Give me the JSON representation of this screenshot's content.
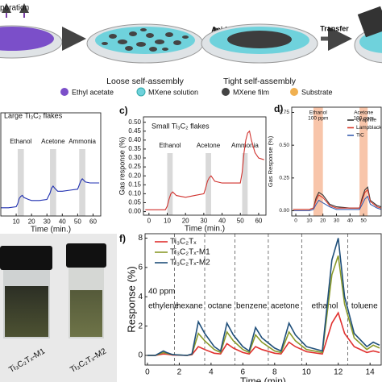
{
  "panel_a": {
    "evaporation": "poration",
    "step_loose": "Loose self-assembly",
    "arrow_acid": "Acid",
    "step_tight": "Tight self-assembly",
    "arrow_transfer": "Transfer",
    "legend": [
      "Ethyl acetate",
      "MXene solution",
      "MXene film",
      "Substrate"
    ]
  },
  "panel_e": {
    "labels": [
      "Ti₃C₂Tₓ-M1",
      "Ti₃C₂Tₓ-M2"
    ]
  },
  "chart_data": [
    {
      "type": "line",
      "title": "Large Ti₃C₂ flakes",
      "xlabel": "Time (min.)",
      "xlim": [
        0,
        65
      ],
      "ylim": [
        0,
        1
      ],
      "xticks": [
        10,
        20,
        30,
        40,
        50,
        60
      ],
      "x": [
        0,
        5,
        10,
        11,
        12,
        13,
        14,
        15,
        18,
        20,
        25,
        30,
        32,
        33,
        34,
        35,
        37,
        40,
        45,
        50,
        51,
        52,
        53,
        55,
        58,
        60,
        64
      ],
      "series": [
        {
          "color": "#1f2fb0",
          "values": [
            0.08,
            0.08,
            0.09,
            0.12,
            0.17,
            0.19,
            0.2,
            0.18,
            0.16,
            0.15,
            0.15,
            0.16,
            0.22,
            0.27,
            0.29,
            0.27,
            0.24,
            0.24,
            0.25,
            0.26,
            0.3,
            0.34,
            0.36,
            0.33,
            0.32,
            0.32,
            0.32
          ]
        }
      ],
      "shaded": [
        [
          11,
          15
        ],
        [
          32,
          36
        ],
        [
          51,
          55
        ]
      ],
      "shade_color": "#d9d9d9",
      "gas_labels": [
        "Ethanol",
        "Acetone",
        "Ammonia"
      ]
    },
    {
      "type": "line",
      "panel_label": "c)",
      "title": "Small Ti₃C₂ flakes",
      "xlabel": "Time (min.)",
      "ylabel": "Gas response (%)",
      "xlim": [
        -3,
        64
      ],
      "ylim": [
        -0.02,
        0.53
      ],
      "xticks": [
        0,
        10,
        20,
        30,
        40,
        50,
        60
      ],
      "yticks": [
        {
          "value": 0,
          "label": "0.00"
        },
        {
          "value": 0.05,
          "label": "0.05"
        },
        {
          "value": 0.1,
          "label": "0.10"
        },
        {
          "value": 0.15,
          "label": "0.15"
        },
        {
          "value": 0.2,
          "label": "0.20"
        },
        {
          "value": 0.25,
          "label": "0.25"
        },
        {
          "value": 0.3,
          "label": "0.30"
        },
        {
          "value": 0.35,
          "label": "0.35"
        },
        {
          "value": 0.4,
          "label": "0.40"
        },
        {
          "value": 0.45,
          "label": "0.45"
        },
        {
          "value": 0.5,
          "label": "0.50"
        }
      ],
      "x": [
        -2,
        0,
        5,
        9,
        10,
        11,
        12,
        13,
        15,
        20,
        25,
        30,
        31,
        32,
        33,
        34,
        36,
        40,
        45,
        50,
        51,
        52,
        53,
        54,
        55,
        56,
        58,
        60,
        63
      ],
      "series": [
        {
          "color": "#d0312d",
          "values": [
            0.01,
            0.01,
            0.01,
            0.01,
            0.03,
            0.07,
            0.1,
            0.11,
            0.09,
            0.08,
            0.09,
            0.1,
            0.13,
            0.17,
            0.19,
            0.2,
            0.17,
            0.16,
            0.16,
            0.16,
            0.22,
            0.33,
            0.4,
            0.44,
            0.45,
            0.4,
            0.33,
            0.3,
            0.29
          ]
        }
      ],
      "shaded": [
        [
          10,
          13
        ],
        [
          31,
          34
        ],
        [
          51,
          54
        ]
      ],
      "shade_color": "#d9d9d9",
      "gas_labels": [
        "Ethanol",
        "Acetone",
        "Ammonia"
      ]
    },
    {
      "type": "line",
      "panel_label": "d)",
      "ylabel": "Gas Response (%)",
      "xlim": [
        -3,
        63
      ],
      "ylim": [
        -0.04,
        0.79
      ],
      "xticks": [
        0,
        10,
        20,
        30,
        40,
        50
      ],
      "yticks": [
        {
          "value": 0,
          "label": "0.00"
        },
        {
          "value": 0.25,
          "label": "0.25"
        },
        {
          "value": 0.5,
          "label": "0.50"
        },
        {
          "value": 0.75,
          "label": "0.75"
        }
      ],
      "x": [
        -2,
        5,
        10,
        13,
        15,
        17,
        20,
        25,
        30,
        40,
        45,
        47,
        49,
        51,
        53,
        55,
        60,
        63
      ],
      "series": [
        {
          "name": "Graphite",
          "color": "#333333",
          "values": [
            0.01,
            0.01,
            0.01,
            0.02,
            0.1,
            0.14,
            0.12,
            0.05,
            0.03,
            0.02,
            0.02,
            0.02,
            0.1,
            0.16,
            0.18,
            0.08,
            0.04,
            0.03
          ]
        },
        {
          "name": "Lampblack",
          "color": "#d93a2b",
          "values": [
            0.01,
            0.01,
            0.01,
            0.02,
            0.08,
            0.12,
            0.1,
            0.04,
            0.02,
            0.02,
            0.02,
            0.02,
            0.08,
            0.14,
            0.16,
            0.07,
            0.03,
            0.02
          ]
        },
        {
          "name": "TiC",
          "color": "#3a5fb0",
          "values": [
            0,
            0,
            0,
            0.01,
            0.05,
            0.08,
            0.06,
            0.03,
            0.01,
            0.01,
            0.01,
            0.01,
            0.05,
            0.09,
            0.11,
            0.05,
            0.02,
            0.01
          ]
        }
      ],
      "shaded": [
        [
          13,
          20
        ],
        [
          47,
          53
        ]
      ],
      "shade_color": "#f8c5aa",
      "gas_labels": [
        "Ethanol",
        "Acetone"
      ],
      "gas_sublabels": [
        "100 ppm",
        "100 ppm"
      ],
      "legend": "upper right"
    },
    {
      "type": "line",
      "panel_label": "f)",
      "xlabel": "Time (min)",
      "ylabel": "Response (%)",
      "xlim": [
        -0.15,
        14.7
      ],
      "ylim": [
        -0.66,
        8.3
      ],
      "xticks": [
        0,
        2,
        4,
        6,
        8,
        10,
        12,
        14
      ],
      "yticks": [
        0,
        2,
        4,
        6,
        8
      ],
      "x": [
        0,
        0.5,
        1.0,
        1.2,
        1.6,
        2.5,
        2.8,
        3.2,
        3.6,
        4.2,
        4.6,
        5.0,
        5.4,
        6.0,
        6.4,
        6.8,
        7.2,
        8.0,
        8.4,
        8.9,
        9.3,
        10.0,
        11.0,
        11.6,
        12.0,
        12.4,
        13.0,
        13.8,
        14.2,
        14.6
      ],
      "series": [
        {
          "name": "Ti₃C₂Tₓ",
          "color": "#e0312f",
          "values": [
            0,
            0,
            0.1,
            0.08,
            0.02,
            0,
            0.05,
            0.6,
            0.4,
            0.15,
            0.1,
            0.8,
            0.5,
            0.2,
            0.1,
            0.6,
            0.4,
            0.15,
            0.1,
            0.9,
            0.6,
            0.25,
            0.1,
            2.2,
            2.9,
            1.5,
            0.6,
            0.2,
            0.3,
            0.2
          ]
        },
        {
          "name": "Ti₃C₂Tₓ-M1",
          "color": "#8a9a2a",
          "values": [
            0,
            0,
            0.2,
            0.15,
            0.05,
            0,
            0.08,
            1.5,
            1.0,
            0.4,
            0.2,
            1.6,
            1.0,
            0.4,
            0.2,
            1.4,
            0.9,
            0.3,
            0.2,
            1.6,
            1.0,
            0.4,
            0.2,
            5.5,
            6.8,
            3.5,
            1.2,
            0.4,
            0.7,
            0.5
          ]
        },
        {
          "name": "Ti₃C₂Tₓ-M2",
          "color": "#1f4f7a",
          "values": [
            0,
            0,
            0.3,
            0.2,
            0.05,
            0,
            0.1,
            2.3,
            1.5,
            0.6,
            0.3,
            2.2,
            1.4,
            0.6,
            0.3,
            1.9,
            1.2,
            0.5,
            0.3,
            2.2,
            1.4,
            0.6,
            0.3,
            6.5,
            8.0,
            4.0,
            1.5,
            0.6,
            0.9,
            0.7
          ]
        }
      ],
      "separators": [
        1.7,
        3.6,
        5.5,
        7.6,
        9.7,
        12.6
      ],
      "first_segment_note": [
        "40 ppm",
        "ethylene"
      ],
      "gas_labels": [
        "hexane",
        "octane",
        "benzene",
        "acetone",
        "ethanol",
        "toluene"
      ],
      "legend": "upper left"
    }
  ]
}
